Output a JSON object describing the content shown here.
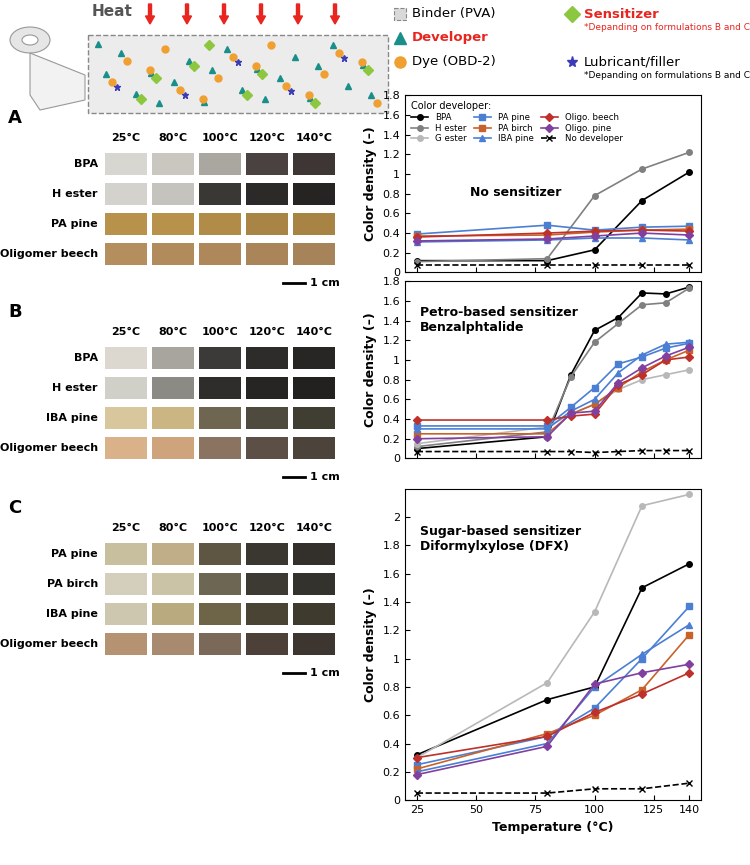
{
  "schematic": {
    "heat_label": "Heat",
    "legend": [
      {
        "label": "Binder (PVA)",
        "color": "#d9d9d9",
        "text_color": "#000000",
        "marker": "square"
      },
      {
        "label": "Developer",
        "color": "#1a8f8a",
        "text_color": "#e8251f",
        "marker": "triangle"
      },
      {
        "label": "Dye (OBD-2)",
        "color": "#f0a030",
        "text_color": "#000000",
        "marker": "circle"
      },
      {
        "label": "Sensitizer",
        "color": "#8dc63f",
        "text_color": "#e8251f",
        "marker": "diamond",
        "note": "*Depanding on formulations B and C"
      },
      {
        "label": "Lubricant/filler",
        "color": "#3b3bb5",
        "text_color": "#000000",
        "marker": "star",
        "note": "*Depanding on formulations B and C"
      }
    ]
  },
  "swatch_panels": [
    {
      "panel": "A",
      "temperatures": [
        "25°C",
        "80°C",
        "100°C",
        "120°C",
        "140°C"
      ],
      "scale_bar": "1 cm",
      "rows": [
        {
          "label": "BPA",
          "colors": [
            "#d8d6d0",
            "#c9c7c0",
            "#a9a7a0",
            "#4a4240",
            "#3e3634"
          ]
        },
        {
          "label": "H ester",
          "colors": [
            "#d3d2cc",
            "#c4c3bd",
            "#3a3835",
            "#2b2a28",
            "#252422"
          ]
        },
        {
          "label": "PA pine",
          "colors": [
            "#b8924a",
            "#b8914a",
            "#b08c48",
            "#a88545",
            "#a88444"
          ]
        },
        {
          "label": "Oligomer beech",
          "colors": [
            "#b58e5e",
            "#b18b5c",
            "#ae885b",
            "#a98559",
            "#a68358"
          ]
        }
      ]
    },
    {
      "panel": "B",
      "temperatures": [
        "25°C",
        "80°C",
        "100°C",
        "120°C",
        "140°C"
      ],
      "scale_bar": "1 cm",
      "rows": [
        {
          "label": "BPA",
          "colors": [
            "#dcd8d0",
            "#a7a59e",
            "#3c3a38",
            "#2e2c2a",
            "#282624"
          ]
        },
        {
          "label": "H ester",
          "colors": [
            "#d0cfc8",
            "#8c8a84",
            "#2e2d2b",
            "#262523",
            "#222120"
          ]
        },
        {
          "label": "IBA pine",
          "colors": [
            "#d8c69c",
            "#cbb583",
            "#6e6650",
            "#4e4a3d",
            "#403d33"
          ]
        },
        {
          "label": "Oligomer beech",
          "colors": [
            "#d9b28a",
            "#cfa47c",
            "#8a7360",
            "#5c5046",
            "#4c433b"
          ]
        }
      ]
    },
    {
      "panel": "C",
      "temperatures": [
        "25°C",
        "80°C",
        "100°C",
        "120°C",
        "140°C"
      ],
      "scale_bar": "1 cm",
      "rows": [
        {
          "label": "PA pine",
          "colors": [
            "#c7bf9e",
            "#bfae88",
            "#5e5642",
            "#3a3630",
            "#33302b"
          ]
        },
        {
          "label": "PA birch",
          "colors": [
            "#d4cfbd",
            "#cbc3a6",
            "#6c6652",
            "#3c3a33",
            "#34322d"
          ]
        },
        {
          "label": "IBA pine",
          "colors": [
            "#cdc7b0",
            "#b9aa80",
            "#6e6548",
            "#4a4434",
            "#3f3a2e"
          ]
        },
        {
          "label": "Oligomer beech",
          "colors": [
            "#b59272",
            "#a88a70",
            "#7a6858",
            "#4c4038",
            "#3d352f"
          ]
        }
      ]
    }
  ],
  "chart_data": [
    {
      "type": "line",
      "annotation": "No sensitizer",
      "ylabel": "Color density (–)",
      "legend": "upper left",
      "legend_title": "Color developer:",
      "tick_labels": "y",
      "xlim": [
        20,
        145
      ],
      "xticks": [
        25,
        50,
        75,
        100,
        125,
        140
      ],
      "ylim": [
        0,
        1.8
      ],
      "yticks": [
        0,
        0.2,
        0.4,
        0.6,
        0.8,
        1,
        1.2,
        1.4,
        1.6,
        1.8
      ],
      "x": [
        25,
        80,
        100,
        120,
        140
      ],
      "series": [
        {
          "name": "BPA",
          "color": "#000000",
          "marker": "circle",
          "line_style": "solid",
          "values": [
            0.12,
            0.12,
            0.23,
            0.73,
            1.02
          ]
        },
        {
          "name": "H ester",
          "color": "#808080",
          "marker": "circle",
          "line_style": "solid",
          "values": [
            0.11,
            0.14,
            0.78,
            1.05,
            1.22
          ]
        },
        {
          "name": "G ester",
          "color": "#b8b8b8",
          "marker": "circle",
          "line_style": "solid",
          "values": [
            null,
            null,
            null,
            null,
            null
          ]
        },
        {
          "name": "PA pine",
          "color": "#4a7fd4",
          "marker": "square",
          "line_style": "solid",
          "values": [
            0.39,
            0.48,
            0.43,
            0.46,
            0.47
          ]
        },
        {
          "name": "PA birch",
          "color": "#c8622a",
          "marker": "square",
          "line_style": "solid",
          "values": [
            0.37,
            0.38,
            0.41,
            0.43,
            0.44
          ]
        },
        {
          "name": "IBA pine",
          "color": "#4a7fd4",
          "marker": "triangle",
          "line_style": "solid",
          "values": [
            0.31,
            0.33,
            0.35,
            0.35,
            0.33
          ]
        },
        {
          "name": "Oligo. beech",
          "color": "#c0302a",
          "marker": "diamond",
          "line_style": "solid",
          "values": [
            0.36,
            0.4,
            0.42,
            0.43,
            0.42
          ]
        },
        {
          "name": "Oligo. pine",
          "color": "#8040a0",
          "marker": "diamond",
          "line_style": "solid",
          "values": [
            0.32,
            0.34,
            0.37,
            0.4,
            0.38
          ]
        },
        {
          "name": "No developer",
          "color": "#000000",
          "marker": "x",
          "line_style": "dashed",
          "values": [
            0.08,
            0.08,
            0.08,
            0.08,
            0.08
          ]
        }
      ]
    },
    {
      "type": "line",
      "annotation": "Petro-based sensitizer\nBenzalphtalide",
      "ylabel": "Color density (–)",
      "tick_labels": "y",
      "xlim": [
        20,
        145
      ],
      "xticks": [
        25,
        50,
        75,
        100,
        125,
        140
      ],
      "ylim": [
        0,
        1.8
      ],
      "yticks": [
        0,
        0.2,
        0.4,
        0.6,
        0.8,
        1,
        1.2,
        1.4,
        1.6,
        1.8
      ],
      "x": [
        25,
        80,
        90,
        100,
        110,
        120,
        130,
        140
      ],
      "series": [
        {
          "name": "BPA",
          "color": "#000000",
          "marker": "circle",
          "line_style": "solid",
          "values": [
            0.1,
            0.22,
            0.85,
            1.3,
            1.43,
            1.68,
            1.67,
            1.74
          ]
        },
        {
          "name": "H ester",
          "color": "#808080",
          "marker": "circle",
          "line_style": "solid",
          "values": [
            0.12,
            0.27,
            0.83,
            1.18,
            1.37,
            1.56,
            1.58,
            1.73
          ]
        },
        {
          "name": "G ester",
          "color": "#b8b8b8",
          "marker": "circle",
          "line_style": "solid",
          "values": [
            0.15,
            0.32,
            0.45,
            0.55,
            0.7,
            0.8,
            0.85,
            0.9
          ]
        },
        {
          "name": "PA pine",
          "color": "#4a7fd4",
          "marker": "square",
          "line_style": "solid",
          "values": [
            0.33,
            0.33,
            0.52,
            0.72,
            0.96,
            1.03,
            1.12,
            1.17
          ]
        },
        {
          "name": "PA birch",
          "color": "#c8622a",
          "marker": "square",
          "line_style": "solid",
          "values": [
            0.25,
            0.25,
            0.45,
            0.55,
            0.72,
            0.88,
            1.0,
            1.1
          ]
        },
        {
          "name": "IBA pine",
          "color": "#4a7fd4",
          "marker": "triangle",
          "line_style": "solid",
          "values": [
            0.3,
            0.3,
            0.48,
            0.6,
            0.87,
            1.05,
            1.16,
            1.18
          ]
        },
        {
          "name": "Oligo. beech",
          "color": "#c0302a",
          "marker": "diamond",
          "line_style": "solid",
          "values": [
            0.39,
            0.39,
            0.43,
            0.45,
            0.75,
            0.85,
            1.0,
            1.03
          ]
        },
        {
          "name": "Oligo. pine",
          "color": "#8040a0",
          "marker": "diamond",
          "line_style": "solid",
          "values": [
            0.2,
            0.22,
            0.46,
            0.48,
            0.77,
            0.92,
            1.04,
            1.13
          ]
        },
        {
          "name": "No developer",
          "color": "#000000",
          "marker": "x",
          "line_style": "dashed",
          "values": [
            0.07,
            0.07,
            0.07,
            0.06,
            0.07,
            0.08,
            0.08,
            0.08
          ]
        }
      ]
    },
    {
      "type": "line",
      "annotation": "Sugar-based sensitizer\nDiformylxylose (DFX)",
      "ylabel": "Color density (–)",
      "xlabel": "Temperature (°C)",
      "xlim": [
        20,
        145
      ],
      "xticks": [
        25,
        50,
        75,
        100,
        125,
        140
      ],
      "ylim": [
        0,
        2.2
      ],
      "yticks": [
        0,
        0.2,
        0.4,
        0.6,
        0.8,
        1,
        1.2,
        1.4,
        1.6,
        1.8,
        2
      ],
      "x": [
        25,
        80,
        100,
        120,
        140
      ],
      "series": [
        {
          "name": "BPA",
          "color": "#000000",
          "marker": "circle",
          "line_style": "solid",
          "values": [
            0.32,
            0.71,
            0.8,
            1.5,
            1.67
          ]
        },
        {
          "name": "H ester",
          "color": "#808080",
          "marker": "circle",
          "line_style": "solid",
          "values": [
            null,
            null,
            null,
            null,
            null
          ]
        },
        {
          "name": "G ester",
          "color": "#b8b8b8",
          "marker": "circle",
          "line_style": "solid",
          "values": [
            0.3,
            0.83,
            1.33,
            2.08,
            2.16
          ]
        },
        {
          "name": "PA pine",
          "color": "#4a7fd4",
          "marker": "square",
          "line_style": "solid",
          "values": [
            0.25,
            0.45,
            0.65,
            1.0,
            1.37
          ]
        },
        {
          "name": "PA birch",
          "color": "#c8622a",
          "marker": "square",
          "line_style": "solid",
          "values": [
            0.22,
            0.47,
            0.6,
            0.78,
            1.17
          ]
        },
        {
          "name": "IBA pine",
          "color": "#4a7fd4",
          "marker": "triangle",
          "line_style": "solid",
          "values": [
            0.2,
            0.4,
            0.8,
            1.03,
            1.24
          ]
        },
        {
          "name": "Oligo. beech",
          "color": "#c0302a",
          "marker": "diamond",
          "line_style": "solid",
          "values": [
            0.3,
            0.45,
            0.62,
            0.75,
            0.9
          ]
        },
        {
          "name": "Oligo. pine",
          "color": "#8040a0",
          "marker": "diamond",
          "line_style": "solid",
          "values": [
            0.18,
            0.38,
            0.82,
            0.9,
            0.96
          ]
        },
        {
          "name": "No developer",
          "color": "#000000",
          "marker": "x",
          "line_style": "dashed",
          "values": [
            0.05,
            0.05,
            0.08,
            0.08,
            0.12
          ]
        }
      ]
    }
  ]
}
